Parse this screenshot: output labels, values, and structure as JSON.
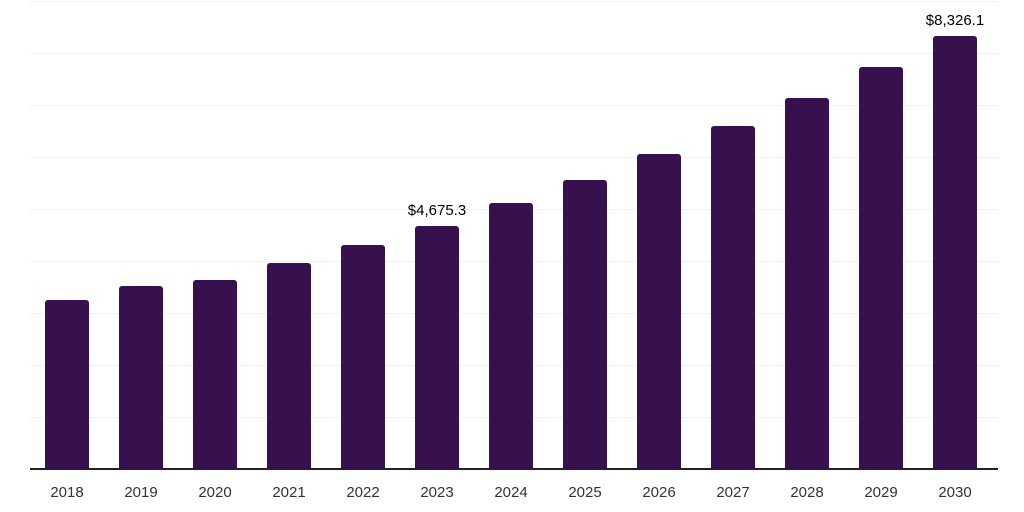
{
  "chart_data": {
    "type": "bar",
    "title": "",
    "xlabel": "",
    "ylabel": "",
    "categories": [
      "2018",
      "2019",
      "2020",
      "2021",
      "2022",
      "2023",
      "2024",
      "2025",
      "2026",
      "2027",
      "2028",
      "2029",
      "2030"
    ],
    "values": [
      3250,
      3520,
      3635,
      3960,
      4310,
      4675.3,
      5115,
      5560,
      6060,
      6600,
      7135,
      7730,
      8326.1
    ],
    "annotations": [
      {
        "category": "2023",
        "text": "$4,675.3"
      },
      {
        "category": "2030",
        "text": "$8,326.1"
      }
    ],
    "ylim": [
      0,
      9000
    ],
    "grid_interval": 1000,
    "grid": true,
    "legend": false,
    "y_axis_labels_visible": false,
    "bar_color": "#36114e",
    "grid_color": "#f2f2f2",
    "axis_color": "#222222",
    "tick_label_color": "#333333",
    "annotation_color": "#000000",
    "background_color": "#ffffff"
  }
}
